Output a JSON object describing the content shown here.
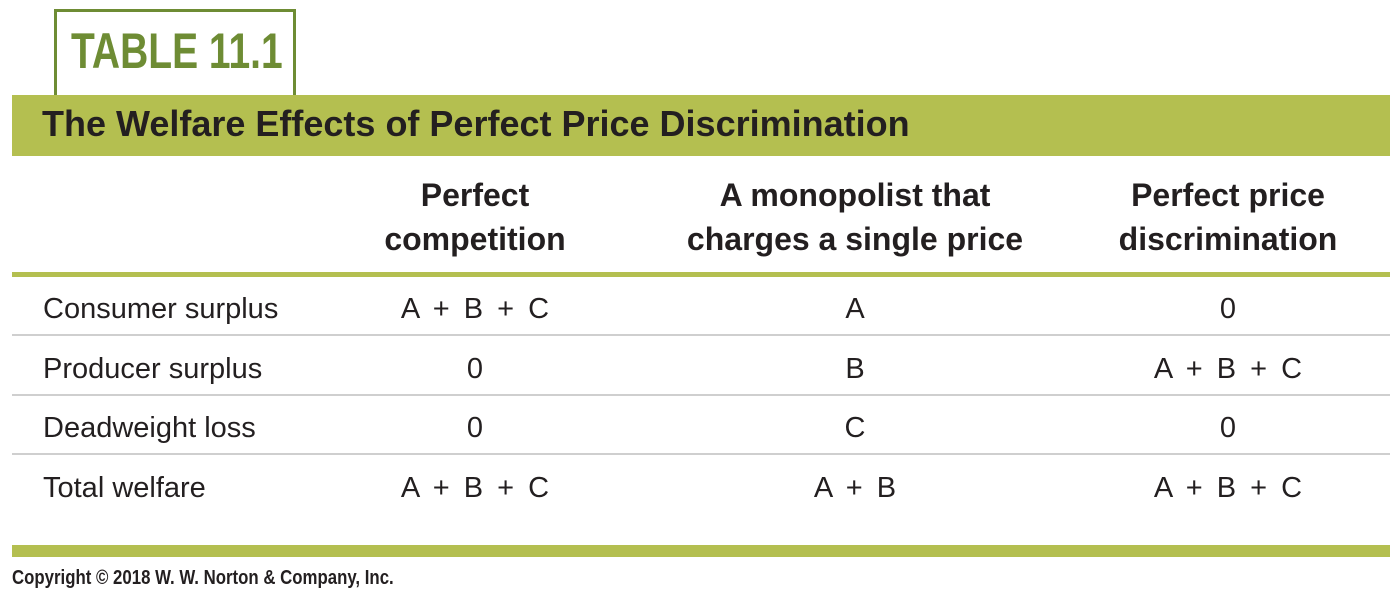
{
  "badge": {
    "label": "TABLE 11.1"
  },
  "title": "The Welfare Effects of Perfect Price Discrimination",
  "columns": [
    {
      "line1": "Perfect",
      "line2": "competition"
    },
    {
      "line1": "A monopolist that",
      "line2": "charges a single price"
    },
    {
      "line1": "Perfect price",
      "line2": "discrimination"
    }
  ],
  "rows": [
    {
      "label": "Consumer surplus",
      "values": [
        "A + B + C",
        "A",
        "0"
      ]
    },
    {
      "label": "Producer surplus",
      "values": [
        "0",
        "B",
        "A + B + C"
      ]
    },
    {
      "label": "Deadweight loss",
      "values": [
        "0",
        "C",
        "0"
      ]
    },
    {
      "label": "Total welfare",
      "values": [
        "A + B + C",
        "A + B",
        "A + B + C"
      ]
    }
  ],
  "copyright": "Copyright © 2018 W. W. Norton & Company, Inc.",
  "colors": {
    "accent_green": "#b4bf50",
    "badge_green": "#6e8c34"
  }
}
